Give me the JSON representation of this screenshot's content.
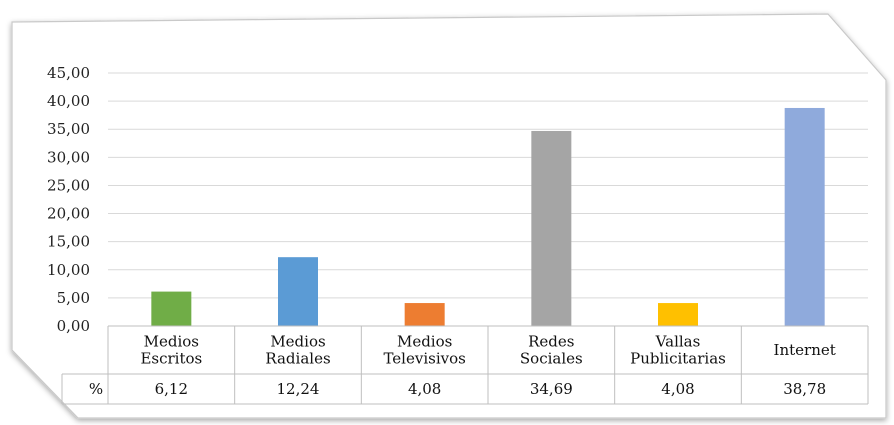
{
  "chart_data": {
    "type": "bar",
    "categories": [
      [
        "Medios",
        "Escritos"
      ],
      [
        "Medios",
        "Radiales"
      ],
      [
        "Medios",
        "Televisivos"
      ],
      [
        "Redes",
        "Sociales"
      ],
      [
        "Vallas",
        "Publicitarias"
      ],
      [
        "Internet"
      ]
    ],
    "values": [
      6.12,
      12.24,
      4.08,
      34.69,
      4.08,
      38.78
    ],
    "value_labels": [
      "6,12",
      "12,24",
      "4,08",
      "34,69",
      "4,08",
      "38,78"
    ],
    "colors": [
      "#70ad47",
      "#5b9bd5",
      "#ed7d31",
      "#a5a5a5",
      "#ffc000",
      "#8faadc"
    ],
    "y_tick_labels": [
      "0,00",
      "5,00",
      "10,00",
      "15,00",
      "20,00",
      "25,00",
      "30,00",
      "35,00",
      "40,00",
      "45,00"
    ],
    "y_ticks": [
      0,
      5,
      10,
      15,
      20,
      25,
      30,
      35,
      40,
      45
    ],
    "ylim": [
      0,
      45
    ],
    "grid": true,
    "row_label": "%",
    "title": "",
    "xlabel": "",
    "ylabel": ""
  }
}
